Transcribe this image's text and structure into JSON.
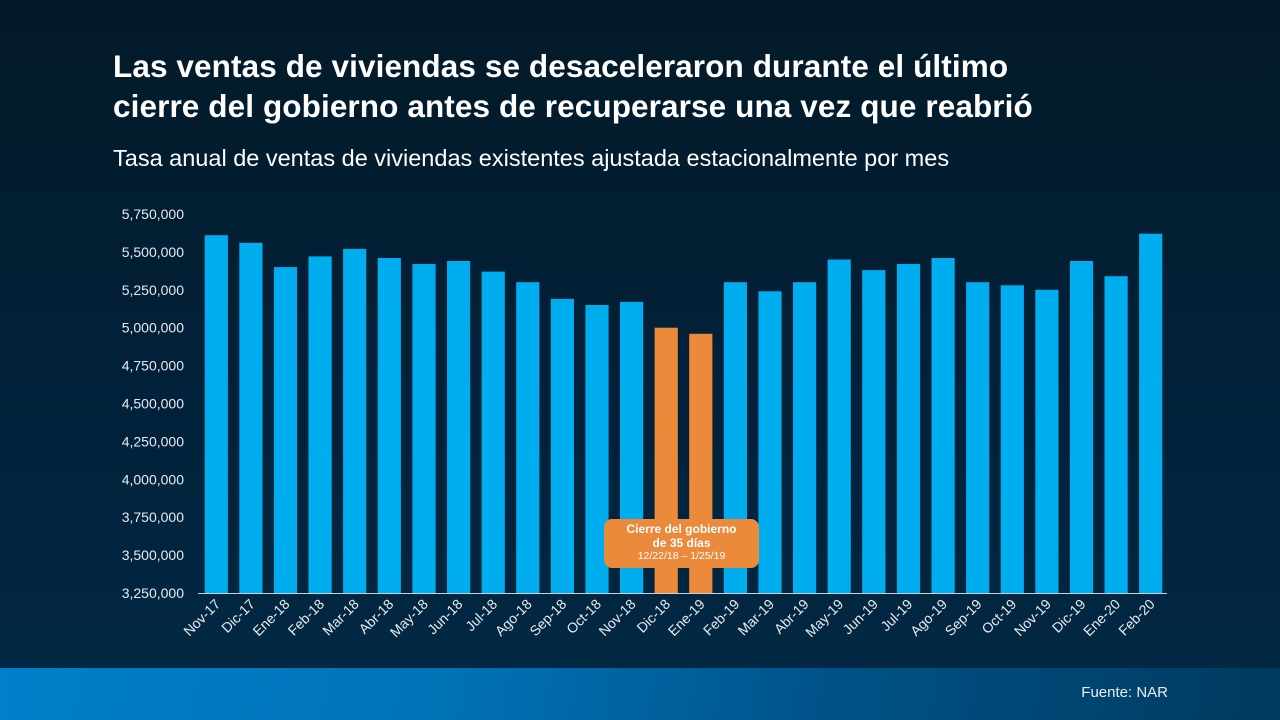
{
  "header": {
    "title_line1": "Las ventas de viviendas se desaceleraron durante el último",
    "title_line2": "cierre del gobierno antes de recuperarse una vez que reabrió",
    "subtitle": "Tasa anual de ventas de viviendas existentes ajustada estacionalmente por mes"
  },
  "annotation": {
    "line1": "Cierre del gobierno",
    "line2": "de 35 días",
    "line3": "12/22/18 – 1/25/19"
  },
  "footer": {
    "source": "Fuente: NAR"
  },
  "colors": {
    "bar": "#00adee",
    "highlight": "#ea8a3a",
    "axis": "#c8d2da",
    "text": "#ffffff"
  },
  "chart_data": {
    "type": "bar",
    "title": "Las ventas de viviendas se desaceleraron durante el último cierre del gobierno antes de recuperarse una vez que reabrió",
    "subtitle": "Tasa anual de ventas de viviendas existentes ajustada estacionalmente por mes",
    "xlabel": "",
    "ylabel": "",
    "ylim": [
      3250000,
      5750000
    ],
    "yticks": [
      3250000,
      3500000,
      3750000,
      4000000,
      4250000,
      4500000,
      4750000,
      5000000,
      5250000,
      5500000,
      5750000
    ],
    "ytick_labels": [
      "3,250,000",
      "3,500,000",
      "3,750,000",
      "4,000,000",
      "4,250,000",
      "4,500,000",
      "4,750,000",
      "5,000,000",
      "5,250,000",
      "5,500,000",
      "5,750,000"
    ],
    "grid": false,
    "legend": "none",
    "categories": [
      "Nov-17",
      "Dic-17",
      "Ene-18",
      "Feb-18",
      "Mar-18",
      "Abr-18",
      "May-18",
      "Jun-18",
      "Jul-18",
      "Ago-18",
      "Sep-18",
      "Oct-18",
      "Nov-18",
      "Dic-18",
      "Ene-19",
      "Feb-19",
      "Mar-19",
      "Abr-19",
      "May-19",
      "Jun-19",
      "Jul-19",
      "Ago-19",
      "Sep-19",
      "Oct-19",
      "Nov-19",
      "Dic-19",
      "Ene-20",
      "Feb-20"
    ],
    "values": [
      5610000,
      5560000,
      5400000,
      5470000,
      5520000,
      5460000,
      5420000,
      5440000,
      5370000,
      5300000,
      5190000,
      5150000,
      5170000,
      5000000,
      4960000,
      5300000,
      5240000,
      5300000,
      5450000,
      5380000,
      5420000,
      5460000,
      5300000,
      5280000,
      5250000,
      5440000,
      5340000,
      5620000
    ],
    "highlighted": [
      "Dic-18",
      "Ene-19"
    ],
    "annotations": [
      {
        "text": "Cierre del gobierno de 35 días 12/22/18 – 1/25/19",
        "categories": [
          "Dic-18",
          "Ene-19"
        ]
      }
    ],
    "source": "Fuente: NAR"
  }
}
